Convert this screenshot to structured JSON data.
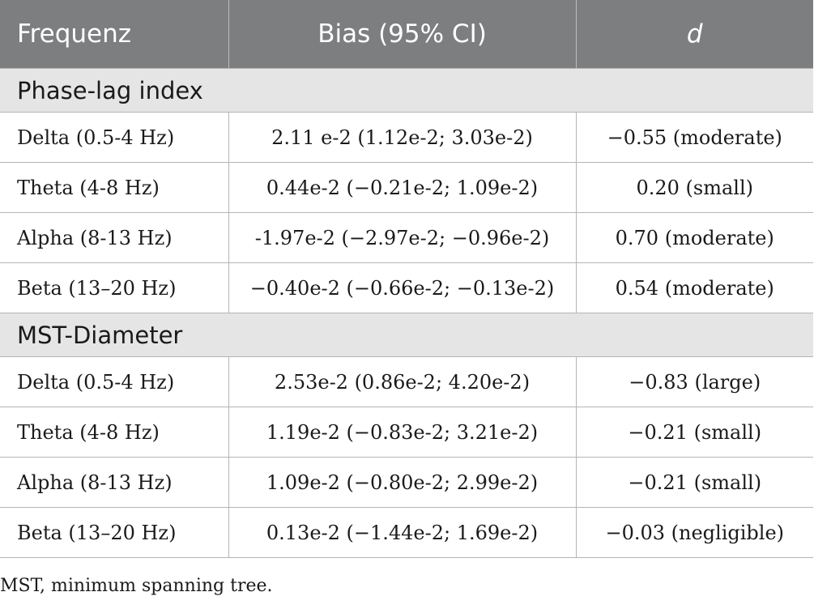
{
  "table": {
    "headers": {
      "frequency": "Frequenz",
      "bias": "Bias (95% CI)",
      "d": "d"
    },
    "sections": [
      {
        "title": "Phase-lag index",
        "rows": [
          {
            "frequency": "Delta (0.5-4 Hz)",
            "bias": "2.11 e-2 (1.12e-2; 3.03e-2)",
            "d": "−0.55 (moderate)"
          },
          {
            "frequency": "Theta (4-8 Hz)",
            "bias": "0.44e-2 (−0.21e-2; 1.09e-2)",
            "d": "0.20 (small)"
          },
          {
            "frequency": "Alpha (8-13 Hz)",
            "bias": "-1.97e-2 (−2.97e-2; −0.96e-2)",
            "d": "0.70 (moderate)"
          },
          {
            "frequency": "Beta (13–20 Hz)",
            "bias": "−0.40e-2 (−0.66e-2; −0.13e-2)",
            "d": "0.54 (moderate)"
          }
        ]
      },
      {
        "title": "MST-Diameter",
        "rows": [
          {
            "frequency": "Delta (0.5-4 Hz)",
            "bias": "2.53e-2 (0.86e-2; 4.20e-2)",
            "d": "−0.83 (large)"
          },
          {
            "frequency": "Theta (4-8 Hz)",
            "bias": "1.19e-2 (−0.83e-2; 3.21e-2)",
            "d": "−0.21 (small)"
          },
          {
            "frequency": "Alpha (8-13 Hz)",
            "bias": "1.09e-2 (−0.80e-2; 2.99e-2)",
            "d": "−0.21 (small)"
          },
          {
            "frequency": "Beta (13–20 Hz)",
            "bias": "0.13e-2 (−1.44e-2; 1.69e-2)",
            "d": "−0.03 (negligible)"
          }
        ]
      }
    ]
  },
  "footnote": "MST, minimum spanning tree.",
  "colors": {
    "header_bg": "#7c7e80",
    "header_text": "#ffffff",
    "section_bg": "#e5e5e5",
    "rule": "#b5b5b5"
  }
}
